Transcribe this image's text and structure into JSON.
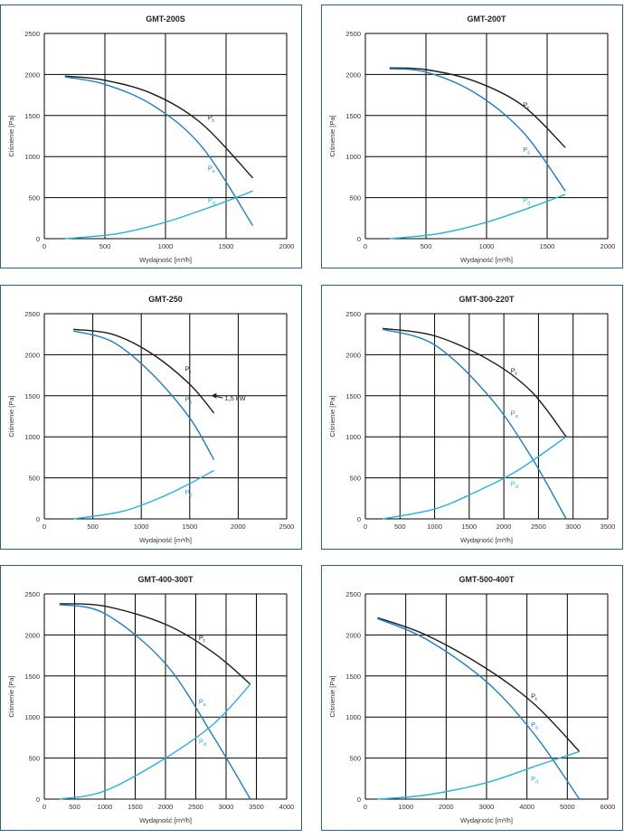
{
  "colors": {
    "pt": "#1b1b1b",
    "ps": "#1f7fbf",
    "pd": "#2ab0d8",
    "border": "#2b5f8c"
  },
  "chart_data": [
    {
      "type": "line",
      "title": "GMT-200S",
      "xlabel": "Wydajność [m³/h]",
      "ylabel": "Ciśnienie [Pa]",
      "xlim": [
        0,
        2000
      ],
      "ylim": [
        0,
        2500
      ],
      "xticks": [
        0,
        500,
        1000,
        1500,
        2000
      ],
      "yticks": [
        0,
        500,
        1000,
        1500,
        2000,
        2500
      ],
      "series": [
        {
          "name": "Pt",
          "color": "#1b1b1b",
          "label_at": [
            1350,
            1450
          ],
          "points": [
            [
              170,
              1980
            ],
            [
              500,
              1930
            ],
            [
              900,
              1760
            ],
            [
              1300,
              1400
            ],
            [
              1720,
              740
            ]
          ]
        },
        {
          "name": "Ps",
          "color": "#1f7fbf",
          "label_at": [
            1350,
            830
          ],
          "points": [
            [
              170,
              1970
            ],
            [
              500,
              1880
            ],
            [
              900,
              1620
            ],
            [
              1300,
              1120
            ],
            [
              1720,
              160
            ]
          ]
        },
        {
          "name": "Pd",
          "color": "#2ab0d8",
          "label_at": [
            1350,
            440
          ],
          "points": [
            [
              170,
              0
            ],
            [
              600,
              60
            ],
            [
              1000,
              200
            ],
            [
              1400,
              400
            ],
            [
              1720,
              580
            ]
          ]
        }
      ]
    },
    {
      "type": "line",
      "title": "GMT-200T",
      "xlabel": "Wydajność [m³/h]",
      "ylabel": "Ciśnienie [Pa]",
      "xlim": [
        0,
        2000
      ],
      "ylim": [
        0,
        2500
      ],
      "xticks": [
        0,
        500,
        1000,
        1500,
        2000
      ],
      "yticks": [
        0,
        500,
        1000,
        1500,
        2000,
        2500
      ],
      "series": [
        {
          "name": "Pt",
          "color": "#1b1b1b",
          "label_at": [
            1300,
            1600
          ],
          "points": [
            [
              200,
              2080
            ],
            [
              500,
              2060
            ],
            [
              900,
              1920
            ],
            [
              1300,
              1620
            ],
            [
              1650,
              1110
            ]
          ]
        },
        {
          "name": "Ps",
          "color": "#1f7fbf",
          "label_at": [
            1300,
            1060
          ],
          "points": [
            [
              200,
              2070
            ],
            [
              500,
              2030
            ],
            [
              900,
              1780
            ],
            [
              1300,
              1300
            ],
            [
              1650,
              580
            ]
          ]
        },
        {
          "name": "Pd",
          "color": "#2ab0d8",
          "label_at": [
            1300,
            440
          ],
          "points": [
            [
              200,
              0
            ],
            [
              600,
              60
            ],
            [
              1000,
              200
            ],
            [
              1400,
              400
            ],
            [
              1650,
              540
            ]
          ]
        }
      ]
    },
    {
      "type": "line",
      "title": "GMT-250",
      "xlabel": "Wydajność [m³/h]",
      "ylabel": "Ciśnienie [Pa]",
      "xlim": [
        0,
        2500
      ],
      "ylim": [
        0,
        2500
      ],
      "xticks": [
        0,
        500,
        1000,
        1500,
        2000,
        2500
      ],
      "yticks": [
        0,
        500,
        1000,
        1500,
        2000,
        2500
      ],
      "annotation": {
        "text": "1,5 kW",
        "at": [
          1720,
          1500
        ],
        "label_at": [
          1860,
          1440
        ]
      },
      "series": [
        {
          "name": "Pt",
          "color": "#1b1b1b",
          "label_at": [
            1450,
            1800
          ],
          "points": [
            [
              300,
              2310
            ],
            [
              700,
              2250
            ],
            [
              1100,
              2020
            ],
            [
              1500,
              1640
            ],
            [
              1750,
              1290
            ]
          ]
        },
        {
          "name": "Ps",
          "color": "#1f7fbf",
          "label_at": [
            1450,
            1430
          ],
          "points": [
            [
              300,
              2290
            ],
            [
              700,
              2160
            ],
            [
              1100,
              1780
            ],
            [
              1500,
              1230
            ],
            [
              1750,
              720
            ]
          ]
        },
        {
          "name": "Pd",
          "color": "#2ab0d8",
          "label_at": [
            1450,
            300
          ],
          "points": [
            [
              300,
              0
            ],
            [
              800,
              90
            ],
            [
              1200,
              260
            ],
            [
              1500,
              430
            ],
            [
              1750,
              590
            ]
          ]
        }
      ]
    },
    {
      "type": "line",
      "title": "GMT-300-220T",
      "xlabel": "Wydajność [m³/h]",
      "ylabel": "Ciśnienie [Pa]",
      "xlim": [
        0,
        3500
      ],
      "ylim": [
        0,
        2500
      ],
      "xticks": [
        0,
        500,
        1000,
        1500,
        2000,
        2500,
        3000,
        3500
      ],
      "yticks": [
        0,
        500,
        1000,
        1500,
        2000,
        2500
      ],
      "series": [
        {
          "name": "Pt",
          "color": "#1b1b1b",
          "label_at": [
            2100,
            1780
          ],
          "points": [
            [
              250,
              2320
            ],
            [
              1000,
              2230
            ],
            [
              1800,
              1930
            ],
            [
              2400,
              1550
            ],
            [
              2900,
              1000
            ]
          ]
        },
        {
          "name": "Ps",
          "color": "#1f7fbf",
          "label_at": [
            2100,
            1260
          ],
          "points": [
            [
              250,
              2310
            ],
            [
              1000,
              2120
            ],
            [
              1800,
              1480
            ],
            [
              2400,
              750
            ],
            [
              2900,
              0
            ]
          ]
        },
        {
          "name": "Pd",
          "color": "#2ab0d8",
          "label_at": [
            2100,
            400
          ],
          "points": [
            [
              250,
              0
            ],
            [
              1000,
              120
            ],
            [
              1600,
              330
            ],
            [
              2200,
              590
            ],
            [
              2900,
              1000
            ]
          ]
        }
      ]
    },
    {
      "type": "line",
      "title": "GMT-400-300T",
      "xlabel": "Wydajność [m³/h]",
      "ylabel": "Ciśnienie [Pa]",
      "xlim": [
        0,
        4000
      ],
      "ylim": [
        0,
        2500
      ],
      "xticks": [
        0,
        500,
        1000,
        1500,
        2000,
        2500,
        3000,
        3500,
        4000
      ],
      "yticks": [
        0,
        500,
        1000,
        1500,
        2000,
        2500
      ],
      "series": [
        {
          "name": "Pt",
          "color": "#1b1b1b",
          "label_at": [
            2550,
            1940
          ],
          "points": [
            [
              250,
              2380
            ],
            [
              1000,
              2350
            ],
            [
              2000,
              2130
            ],
            [
              2800,
              1780
            ],
            [
              3400,
              1400
            ]
          ]
        },
        {
          "name": "Ps",
          "color": "#1f7fbf",
          "label_at": [
            2550,
            1160
          ],
          "points": [
            [
              250,
              2370
            ],
            [
              1000,
              2260
            ],
            [
              2000,
              1650
            ],
            [
              2800,
              750
            ],
            [
              3400,
              0
            ]
          ]
        },
        {
          "name": "Pd",
          "color": "#2ab0d8",
          "label_at": [
            2550,
            680
          ],
          "points": [
            [
              250,
              0
            ],
            [
              1000,
              100
            ],
            [
              2000,
              500
            ],
            [
              2800,
              920
            ],
            [
              3400,
              1400
            ]
          ]
        }
      ]
    },
    {
      "type": "line",
      "title": "GMT-500-400T",
      "xlabel": "Wydajność [m³/h]",
      "ylabel": "Ciśnienie [Pa]",
      "xlim": [
        0,
        6000
      ],
      "ylim": [
        0,
        2500
      ],
      "xticks": [
        0,
        1000,
        2000,
        3000,
        4000,
        5000,
        6000
      ],
      "yticks": [
        0,
        500,
        1000,
        1500,
        2000,
        2500
      ],
      "series": [
        {
          "name": "Pt",
          "color": "#1b1b1b",
          "label_at": [
            4100,
            1230
          ],
          "points": [
            [
              300,
              2210
            ],
            [
              1500,
              2000
            ],
            [
              3000,
              1590
            ],
            [
              4200,
              1150
            ],
            [
              5300,
              580
            ]
          ]
        },
        {
          "name": "Ps",
          "color": "#1f7fbf",
          "label_at": [
            4100,
            880
          ],
          "points": [
            [
              300,
              2200
            ],
            [
              1500,
              1950
            ],
            [
              3000,
              1430
            ],
            [
              4200,
              780
            ],
            [
              5300,
              0
            ]
          ]
        },
        {
          "name": "Pd",
          "color": "#2ab0d8",
          "label_at": [
            4100,
            220
          ],
          "points": [
            [
              300,
              0
            ],
            [
              1500,
              50
            ],
            [
              3000,
              200
            ],
            [
              4200,
              400
            ],
            [
              5300,
              580
            ]
          ]
        }
      ]
    }
  ]
}
